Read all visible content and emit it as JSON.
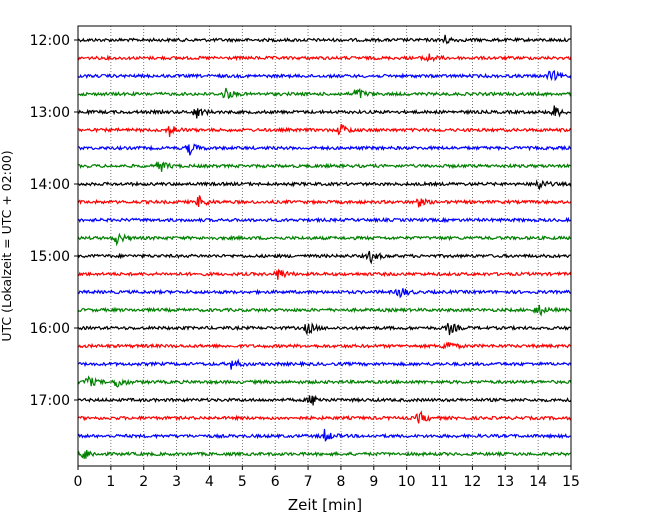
{
  "chart_data": {
    "type": "line",
    "title": "",
    "xlabel": "Zeit  [min]",
    "ylabel": "UTC (Lokalzeit = UTC + 02:00)",
    "xlim": [
      0,
      15
    ],
    "x_ticks": [
      "0",
      "1",
      "2",
      "3",
      "4",
      "5",
      "6",
      "7",
      "8",
      "9",
      "10",
      "11",
      "12",
      "13",
      "14",
      "15"
    ],
    "y_ticks": [
      "12:00",
      "13:00",
      "14:00",
      "15:00",
      "16:00",
      "17:00"
    ],
    "grid": "vertical dotted at each minute",
    "colors": [
      "#000000",
      "#ff0000",
      "#0000ff",
      "#008000"
    ],
    "rows": [
      {
        "start": "12:00",
        "color": "#000000",
        "events_min": [
          11.1
        ]
      },
      {
        "start": "12:15",
        "color": "#ff0000",
        "events_min": [
          10.6
        ]
      },
      {
        "start": "12:30",
        "color": "#0000ff",
        "events_min": [
          14.4
        ]
      },
      {
        "start": "12:45",
        "color": "#008000",
        "events_min": [
          4.5,
          8.5
        ]
      },
      {
        "start": "13:00",
        "color": "#000000",
        "events_min": [
          3.6,
          14.5
        ]
      },
      {
        "start": "13:15",
        "color": "#ff0000",
        "events_min": [
          2.8,
          8.0
        ]
      },
      {
        "start": "13:30",
        "color": "#0000ff",
        "events_min": [
          3.4
        ]
      },
      {
        "start": "13:45",
        "color": "#008000",
        "events_min": [
          2.5
        ]
      },
      {
        "start": "14:00",
        "color": "#000000",
        "events_min": [
          14.0
        ]
      },
      {
        "start": "14:15",
        "color": "#ff0000",
        "events_min": [
          10.3,
          3.7
        ]
      },
      {
        "start": "14:30",
        "color": "#0000ff",
        "events_min": []
      },
      {
        "start": "14:45",
        "color": "#008000",
        "events_min": [
          1.2
        ]
      },
      {
        "start": "15:00",
        "color": "#000000",
        "events_min": [
          8.9
        ]
      },
      {
        "start": "15:15",
        "color": "#ff0000",
        "events_min": [
          6.1
        ]
      },
      {
        "start": "15:30",
        "color": "#0000ff",
        "events_min": [
          9.8
        ]
      },
      {
        "start": "15:45",
        "color": "#008000",
        "events_min": [
          14.0
        ]
      },
      {
        "start": "16:00",
        "color": "#000000",
        "events_min": [
          7.0,
          11.3
        ]
      },
      {
        "start": "16:15",
        "color": "#ff0000",
        "events_min": [
          11.2
        ]
      },
      {
        "start": "16:30",
        "color": "#0000ff",
        "events_min": [
          4.7
        ]
      },
      {
        "start": "16:45",
        "color": "#008000",
        "events_min": [
          0.3,
          1.2
        ]
      },
      {
        "start": "17:00",
        "color": "#000000",
        "events_min": [
          7.1
        ]
      },
      {
        "start": "17:15",
        "color": "#ff0000",
        "events_min": [
          10.4
        ]
      },
      {
        "start": "17:30",
        "color": "#0000ff",
        "events_min": [
          7.5
        ]
      },
      {
        "start": "17:45",
        "color": "#008000",
        "events_min": [
          0.2
        ]
      }
    ]
  }
}
